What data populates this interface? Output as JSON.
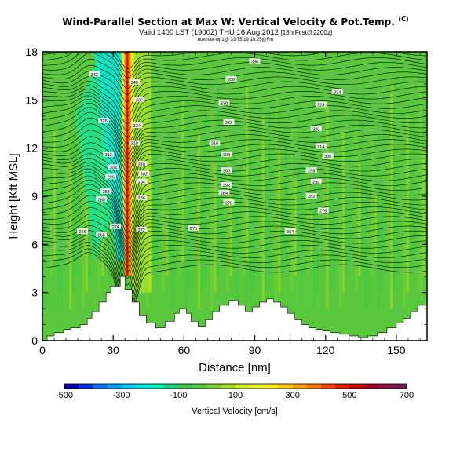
{
  "header": {
    "title": "Wind-Parallel Section at Max W: Vertical Velocity & Pot.Temp.",
    "title_mark": "(C)",
    "valid_line": "Valid 1400 LST (1900Z) THU 16 Aug 2012",
    "run_label": "[18hrFcst@2200z]",
    "sub_line": "boxmax-wp1@ 33.75,19 18.25@Fm"
  },
  "chart_data": {
    "type": "heatmap",
    "xlabel": "Distance [nm]",
    "ylabel": "Height [Kft MSL]",
    "xlim": [
      0,
      163
    ],
    "ylim": [
      0,
      18
    ],
    "xticks": [
      0,
      30,
      60,
      90,
      120,
      150
    ],
    "yticks": [
      0,
      3,
      6,
      9,
      12,
      15,
      18
    ],
    "colorbar": {
      "label": "Vertical Velocity [cm/s]",
      "min": -500,
      "max": 700,
      "ticks": [
        -500,
        -300,
        -100,
        100,
        300,
        500,
        700
      ],
      "colors": [
        "#0000b4",
        "#0032f0",
        "#0078ff",
        "#00a0ff",
        "#00c8f0",
        "#00e6dc",
        "#00f0b4",
        "#1ed27d",
        "#3cc846",
        "#5ac83c",
        "#78d232",
        "#a0e01e",
        "#c8f01e",
        "#e6f028",
        "#ffeb14",
        "#ffc814",
        "#ffa00a",
        "#ff7800",
        "#ff4600",
        "#e61e00",
        "#c80000",
        "#aa0028",
        "#8c1446",
        "#781e5a"
      ]
    },
    "updraft_core_x": 36,
    "updraft_max_cms": 700,
    "terrain": {
      "x": [
        0,
        2,
        2,
        5,
        5,
        9,
        9,
        12,
        12,
        16,
        16,
        19,
        19,
        21,
        21,
        24,
        24,
        27,
        27,
        29,
        29,
        33,
        33,
        35,
        35,
        38,
        38,
        41,
        41,
        44,
        44,
        48,
        48,
        52,
        52,
        56,
        56,
        58,
        58,
        61,
        61,
        63,
        63,
        66,
        66,
        69,
        69,
        72,
        72,
        75,
        75,
        79,
        79,
        83,
        83,
        86,
        86,
        89,
        89,
        92,
        92,
        95,
        95,
        98,
        98,
        101,
        101,
        104,
        104,
        107,
        107,
        110,
        110,
        113,
        113,
        116,
        116,
        119,
        119,
        122,
        122,
        126,
        126,
        130,
        130,
        134,
        134,
        138,
        138,
        142,
        142,
        146,
        146,
        150,
        150,
        153,
        153,
        156,
        156,
        159,
        159,
        163,
        163,
        0
      ],
      "y": [
        0,
        0,
        0.3,
        0.3,
        0.5,
        0.5,
        0.7,
        0.7,
        0.8,
        0.8,
        1.0,
        1.0,
        1.4,
        1.4,
        1.8,
        1.8,
        2.4,
        2.4,
        3.0,
        3.0,
        3.4,
        3.4,
        4.0,
        4.0,
        3.2,
        3.2,
        2.4,
        2.4,
        1.6,
        1.6,
        1.1,
        1.1,
        0.8,
        0.8,
        1.2,
        1.2,
        1.7,
        1.7,
        2.0,
        2.0,
        1.7,
        1.7,
        1.2,
        1.2,
        0.9,
        0.9,
        1.3,
        1.3,
        1.8,
        1.8,
        2.2,
        2.2,
        2.5,
        2.5,
        2.2,
        2.2,
        1.8,
        1.8,
        2.1,
        2.1,
        2.4,
        2.4,
        2.6,
        2.6,
        2.4,
        2.4,
        2.1,
        2.1,
        1.7,
        1.7,
        1.3,
        1.3,
        1.0,
        1.0,
        0.8,
        0.8,
        0.7,
        0.7,
        0.6,
        0.6,
        0.5,
        0.5,
        0.4,
        0.4,
        0.3,
        0.3,
        0.2,
        0.2,
        0.3,
        0.3,
        0.5,
        0.5,
        0.8,
        0.8,
        1.1,
        1.1,
        1.4,
        1.4,
        1.8,
        1.8,
        2.2,
        2.2,
        0,
        0
      ]
    },
    "contour_labels": [
      {
        "text": "342",
        "x": 22,
        "y": 16.6
      },
      {
        "text": "340",
        "x": 39,
        "y": 16.1
      },
      {
        "text": "338",
        "x": 80,
        "y": 16.3
      },
      {
        "text": "336",
        "x": 90,
        "y": 17.4
      },
      {
        "text": "334",
        "x": 125,
        "y": 15.5
      },
      {
        "text": "332",
        "x": 41,
        "y": 15.0
      },
      {
        "text": "330",
        "x": 77,
        "y": 14.8
      },
      {
        "text": "328",
        "x": 118,
        "y": 14.7
      },
      {
        "text": "326",
        "x": 26,
        "y": 13.7
      },
      {
        "text": "324",
        "x": 40,
        "y": 13.4
      },
      {
        "text": "322",
        "x": 79,
        "y": 13.6
      },
      {
        "text": "320",
        "x": 116,
        "y": 13.2
      },
      {
        "text": "318",
        "x": 39,
        "y": 12.3
      },
      {
        "text": "316",
        "x": 73,
        "y": 12.3
      },
      {
        "text": "314",
        "x": 118,
        "y": 12.1
      },
      {
        "text": "312",
        "x": 28,
        "y": 11.6
      },
      {
        "text": "310",
        "x": 42,
        "y": 11.0
      },
      {
        "text": "308",
        "x": 78,
        "y": 11.6
      },
      {
        "text": "306",
        "x": 121,
        "y": 11.5
      },
      {
        "text": "304",
        "x": 30,
        "y": 10.8
      },
      {
        "text": "302",
        "x": 43,
        "y": 10.4
      },
      {
        "text": "300",
        "x": 78,
        "y": 10.6
      },
      {
        "text": "298",
        "x": 114,
        "y": 10.6
      },
      {
        "text": "296",
        "x": 29,
        "y": 10.2
      },
      {
        "text": "294",
        "x": 42,
        "y": 9.9
      },
      {
        "text": "292",
        "x": 78,
        "y": 9.7
      },
      {
        "text": "290",
        "x": 116,
        "y": 9.9
      },
      {
        "text": "288",
        "x": 27,
        "y": 9.3
      },
      {
        "text": "286",
        "x": 42,
        "y": 8.9
      },
      {
        "text": "284",
        "x": 77,
        "y": 9.2
      },
      {
        "text": "282",
        "x": 114,
        "y": 9.0
      },
      {
        "text": "280",
        "x": 25,
        "y": 8.8
      },
      {
        "text": "278",
        "x": 79,
        "y": 8.6
      },
      {
        "text": "276",
        "x": 119,
        "y": 8.1
      },
      {
        "text": "274",
        "x": 31,
        "y": 7.1
      },
      {
        "text": "272",
        "x": 42,
        "y": 6.9
      },
      {
        "text": "270",
        "x": 64,
        "y": 7.0
      },
      {
        "text": "268",
        "x": 25,
        "y": 6.6
      },
      {
        "text": "266",
        "x": 17,
        "y": 6.8
      },
      {
        "text": "264",
        "x": 105,
        "y": 6.8
      }
    ]
  }
}
